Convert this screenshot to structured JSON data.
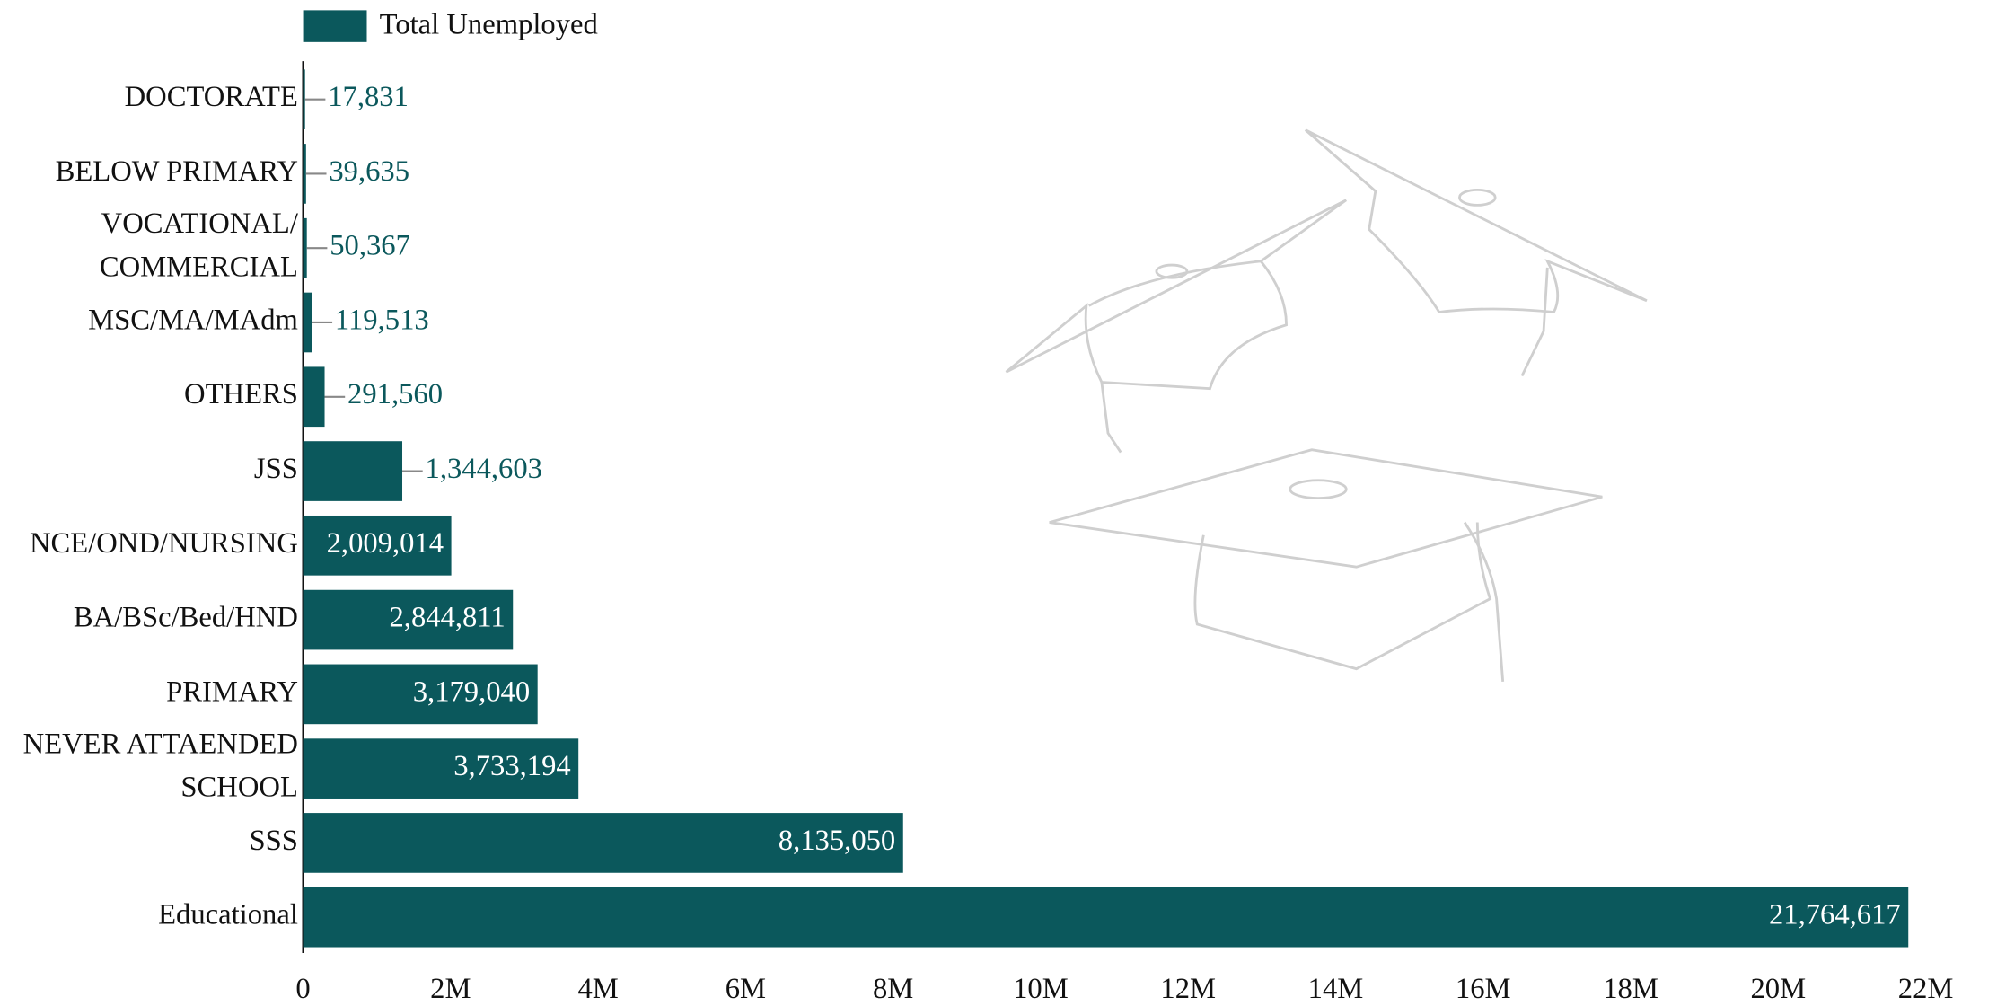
{
  "chart_data": {
    "type": "bar",
    "orientation": "horizontal",
    "legend": "top-left",
    "categories": [
      "DOCTORATE",
      "BELOW PRIMARY",
      "VOCATIONAL/\nCOMMERCIAL",
      "MSC/MA/MAdm",
      "OTHERS",
      "JSS",
      "NCE/OND/NURSING",
      "BA/BSc/Bed/HND",
      "PRIMARY",
      "NEVER ATTAENDED\nSCHOOL",
      "SSS",
      "Educational"
    ],
    "series": [
      {
        "name": "Total Unemployed",
        "color": "#0b585c",
        "values": [
          17831,
          39635,
          50367,
          119513,
          291560,
          1344603,
          2009014,
          2844811,
          3179040,
          3733194,
          8135050,
          21764617
        ],
        "value_labels": [
          "17,831",
          "39,635",
          "50,367",
          "119,513",
          "291,560",
          "1,344,603",
          "2,009,014",
          "2,844,811",
          "3,179,040",
          "3,733,194",
          "8,135,050",
          "21,764,617"
        ]
      }
    ],
    "xlim": [
      0,
      22000000
    ],
    "xticks": [
      0,
      {
        "value": 2000000,
        "label": "2M"
      },
      {
        "value": 4000000,
        "label": "4M"
      },
      {
        "value": 6000000,
        "label": "6M"
      },
      {
        "value": 8000000,
        "label": "8M"
      },
      {
        "value": 10000000,
        "label": "10M"
      },
      {
        "value": 12000000,
        "label": "12M"
      },
      {
        "value": 14000000,
        "label": "14M"
      },
      {
        "value": 16000000,
        "label": "16M"
      },
      {
        "value": 18000000,
        "label": "18M"
      },
      {
        "value": 20000000,
        "label": "20M"
      },
      {
        "value": 22000000,
        "label": "22M"
      }
    ]
  }
}
